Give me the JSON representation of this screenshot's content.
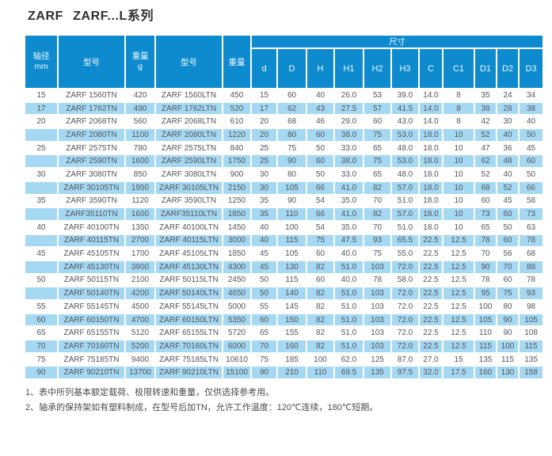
{
  "title": "ZARF ZARF...L系列",
  "colors": {
    "header_blue": "#0e8bce",
    "stripe_blue": "#a5d9f3",
    "row_white": "#ffffff",
    "header_text": "#edf6fc",
    "body_text": "#55555a",
    "title_text": "#332e29"
  },
  "table": {
    "header": {
      "shaft": "轴径\nmm",
      "model_tn": "型号",
      "weight_tn": "重量\ng",
      "model_ltn": "型号",
      "weight_ltn": "重量",
      "dims_group": "尺寸",
      "dim_cols": [
        "d",
        "D",
        "H",
        "H1",
        "H2",
        "H3",
        "C",
        "C1",
        "D1",
        "D2",
        "D3"
      ]
    },
    "rows": [
      {
        "shaft": "15",
        "model_tn": "ZARF 1560TN",
        "weight_tn": "420",
        "model_ltn": "ZARF 1560LTN",
        "weight_ltn": "450",
        "dims": [
          "15",
          "60",
          "40",
          "26.0",
          "53",
          "39.0",
          "14.0",
          "8",
          "35",
          "24",
          "34"
        ]
      },
      {
        "shaft": "17",
        "model_tn": "ZARF 1762TN",
        "weight_tn": "490",
        "model_ltn": "ZARF 1762LTN",
        "weight_ltn": "520",
        "dims": [
          "17",
          "62",
          "43",
          "27.5",
          "57",
          "41.5",
          "14.0",
          "8",
          "38",
          "28",
          "38"
        ]
      },
      {
        "shaft": "20",
        "model_tn": "ZARF 2068TN",
        "weight_tn": "560",
        "model_ltn": "ZARF 2068LTN",
        "weight_ltn": "610",
        "dims": [
          "20",
          "68",
          "46",
          "29.0",
          "60",
          "43.0",
          "14.0",
          "8",
          "42",
          "30",
          "40"
        ]
      },
      {
        "shaft": "",
        "model_tn": "ZARF 2080TN",
        "weight_tn": "1100",
        "model_ltn": "ZARF 2080LTN",
        "weight_ltn": "1220",
        "dims": [
          "20",
          "80",
          "60",
          "38.0",
          "75",
          "53.0",
          "18.0",
          "10",
          "52",
          "40",
          "50"
        ]
      },
      {
        "shaft": "25",
        "model_tn": "ZARF 2575TN",
        "weight_tn": "780",
        "model_ltn": "ZARF 2575LTN",
        "weight_ltn": "840",
        "dims": [
          "25",
          "75",
          "50",
          "33.0",
          "65",
          "48.0",
          "18.0",
          "10",
          "47",
          "36",
          "45"
        ]
      },
      {
        "shaft": "",
        "model_tn": "ZARF 2590TN",
        "weight_tn": "1600",
        "model_ltn": "ZARF 2590LTN",
        "weight_ltn": "1750",
        "dims": [
          "25",
          "90",
          "60",
          "38.0",
          "75",
          "53.0",
          "18.0",
          "10",
          "62",
          "48",
          "60"
        ]
      },
      {
        "shaft": "30",
        "model_tn": "ZARF 3080TN",
        "weight_tn": "850",
        "model_ltn": "ZARF 3080LTN",
        "weight_ltn": "900",
        "dims": [
          "30",
          "80",
          "50",
          "33.0",
          "65",
          "48.0",
          "18.0",
          "10",
          "52",
          "40",
          "50"
        ]
      },
      {
        "shaft": "",
        "model_tn": "ZARF 30105TN",
        "weight_tn": "1950",
        "model_ltn": "ZARF 30105LTN",
        "weight_ltn": "2150",
        "dims": [
          "30",
          "105",
          "66",
          "41.0",
          "82",
          "57.0",
          "18.0",
          "10",
          "68",
          "52",
          "66"
        ]
      },
      {
        "shaft": "35",
        "model_tn": "ZARF 3590TN",
        "weight_tn": "1120",
        "model_ltn": "ZARF 3590LTN",
        "weight_ltn": "1250",
        "dims": [
          "35",
          "90",
          "54",
          "35.0",
          "70",
          "51.0",
          "18.0",
          "10",
          "60",
          "45",
          "58"
        ]
      },
      {
        "shaft": "",
        "model_tn": "ZARF35110TN",
        "weight_tn": "1600",
        "model_ltn": "ZARF35110LTN",
        "weight_ltn": "1850",
        "dims": [
          "35",
          "110",
          "66",
          "41.0",
          "82",
          "57.0",
          "18.0",
          "10",
          "73",
          "60",
          "73"
        ]
      },
      {
        "shaft": "40",
        "model_tn": "ZARF 40100TN",
        "weight_tn": "1350",
        "model_ltn": "ZARF 40100LTN",
        "weight_ltn": "1450",
        "dims": [
          "40",
          "100",
          "54",
          "35.0",
          "70",
          "51.0",
          "18.0",
          "10",
          "65",
          "50",
          "63"
        ]
      },
      {
        "shaft": "",
        "model_tn": "ZARF 40115TN",
        "weight_tn": "2700",
        "model_ltn": "ZARF 40115LTN",
        "weight_ltn": "3000",
        "dims": [
          "40",
          "115",
          "75",
          "47.5",
          "93",
          "65.5",
          "22.5",
          "12.5",
          "78",
          "60",
          "78"
        ]
      },
      {
        "shaft": "45",
        "model_tn": "ZARF 45105TN",
        "weight_tn": "1700",
        "model_ltn": "ZARF 45105LTN",
        "weight_ltn": "1850",
        "dims": [
          "45",
          "105",
          "60",
          "40.0",
          "75",
          "55.0",
          "22.5",
          "12.5",
          "70",
          "56",
          "68"
        ]
      },
      {
        "shaft": "",
        "model_tn": "ZARF 45130TN",
        "weight_tn": "3900",
        "model_ltn": "ZARF 45130LTN",
        "weight_ltn": "4300",
        "dims": [
          "45",
          "130",
          "82",
          "51.0",
          "103",
          "72.0",
          "22.5",
          "12.5",
          "90",
          "70",
          "88"
        ]
      },
      {
        "shaft": "50",
        "model_tn": "ZARF 50115TN",
        "weight_tn": "2100",
        "model_ltn": "ZARF 50115LTN",
        "weight_ltn": "2450",
        "dims": [
          "50",
          "115",
          "60",
          "40.0",
          "78",
          "58.0",
          "22.5",
          "12.5",
          "78",
          "60",
          "78"
        ]
      },
      {
        "shaft": "",
        "model_tn": "ZARF 50140TN",
        "weight_tn": "4200",
        "model_ltn": "ZARF 50140LTN",
        "weight_ltn": "4650",
        "dims": [
          "50",
          "140",
          "82",
          "51.0",
          "103",
          "72.0",
          "22.5",
          "12.5",
          "95",
          "75",
          "93"
        ]
      },
      {
        "shaft": "55",
        "model_tn": "ZARF 55145TN",
        "weight_tn": "4500",
        "model_ltn": "ZARF 55145LTN",
        "weight_ltn": "5000",
        "dims": [
          "55",
          "145",
          "82",
          "51.0",
          "103",
          "72.0",
          "22.5",
          "12.5",
          "100",
          "80",
          "98"
        ]
      },
      {
        "shaft": "60",
        "model_tn": "ZARF 60150TN",
        "weight_tn": "4700",
        "model_ltn": "ZARF 60150LTN",
        "weight_ltn": "5350",
        "dims": [
          "60",
          "150",
          "82",
          "51.0",
          "103",
          "72.0",
          "22.5",
          "12.5",
          "105",
          "90",
          "105"
        ]
      },
      {
        "shaft": "65",
        "model_tn": "ZARF 65155TN",
        "weight_tn": "5120",
        "model_ltn": "ZARF 65155LTN",
        "weight_ltn": "5720",
        "dims": [
          "65",
          "155",
          "82",
          "51.0",
          "103",
          "72.0",
          "22.5",
          "12.5",
          "110",
          "90",
          "108"
        ]
      },
      {
        "shaft": "70",
        "model_tn": "ZARF 70160TN",
        "weight_tn": "5200",
        "model_ltn": "ZARF 70160LTN",
        "weight_ltn": "6000",
        "dims": [
          "70",
          "160",
          "82",
          "51.0",
          "103",
          "72.0",
          "22.5",
          "12.5",
          "115",
          "100",
          "115"
        ]
      },
      {
        "shaft": "75",
        "model_tn": "ZARF 75185TN",
        "weight_tn": "9400",
        "model_ltn": "ZARF 75185LTN",
        "weight_ltn": "10610",
        "dims": [
          "75",
          "185",
          "100",
          "62.0",
          "125",
          "87.0",
          "27.0",
          "15",
          "135",
          "115",
          "135"
        ]
      },
      {
        "shaft": "90",
        "model_tn": "ZARF 90210TN",
        "weight_tn": "13700",
        "model_ltn": "ZARF 90210LTN",
        "weight_ltn": "15100",
        "dims": [
          "90",
          "210",
          "110",
          "69.5",
          "135",
          "97.5",
          "32.0",
          "17.5",
          "160",
          "130",
          "158"
        ]
      }
    ]
  },
  "notes": [
    "1、表中所列基本额定载荷、极限转速和重量，仅供选择参考用。",
    "2、轴承的保持架如有塑料制成，在型号后加TN，允许工作温度：120℃连续，180℃短期。"
  ]
}
